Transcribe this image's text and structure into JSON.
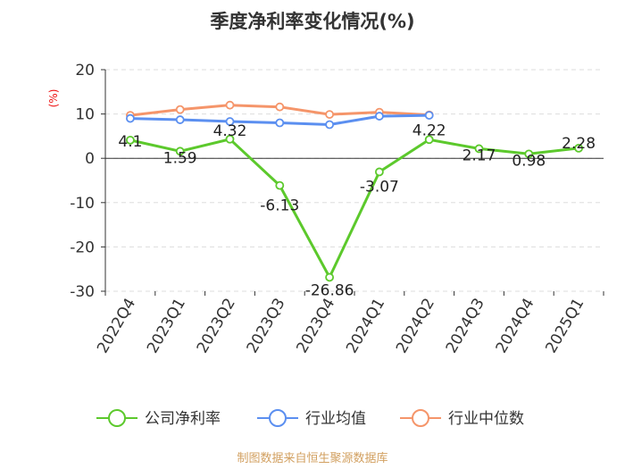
{
  "chart_data": {
    "type": "line",
    "title": "季度净利率变化情况(%)",
    "ylabel": "(%)",
    "categories": [
      "2022Q4",
      "2023Q1",
      "2023Q2",
      "2023Q3",
      "2023Q4",
      "2024Q1",
      "2024Q2",
      "2024Q3",
      "2024Q4",
      "2025Q1"
    ],
    "ylim": [
      -30,
      20
    ],
    "yticks": [
      20,
      10,
      0,
      -10,
      -20,
      -30
    ],
    "grid": true,
    "legend_position": "bottom",
    "series": [
      {
        "name": "公司净利率",
        "color": "#5cc92c",
        "values": [
          4.1,
          1.59,
          4.32,
          -6.13,
          -26.86,
          -3.07,
          4.22,
          2.17,
          0.98,
          2.28
        ],
        "labels": [
          "4.1",
          "1.59",
          "4.32",
          "-6.13",
          "-26.86",
          "-3.07",
          "4.22",
          "2.17",
          "0.98",
          "2.28"
        ]
      },
      {
        "name": "行业均值",
        "color": "#5b8ff0",
        "values": [
          9.0,
          8.7,
          8.3,
          8.0,
          7.6,
          9.5,
          9.7,
          null,
          null,
          null
        ]
      },
      {
        "name": "行业中位数",
        "color": "#f5956a",
        "values": [
          9.7,
          11.0,
          12.0,
          11.6,
          9.9,
          10.4,
          9.8,
          null,
          null,
          null
        ]
      }
    ],
    "source": "制图数据来自恒生聚源数据库"
  }
}
